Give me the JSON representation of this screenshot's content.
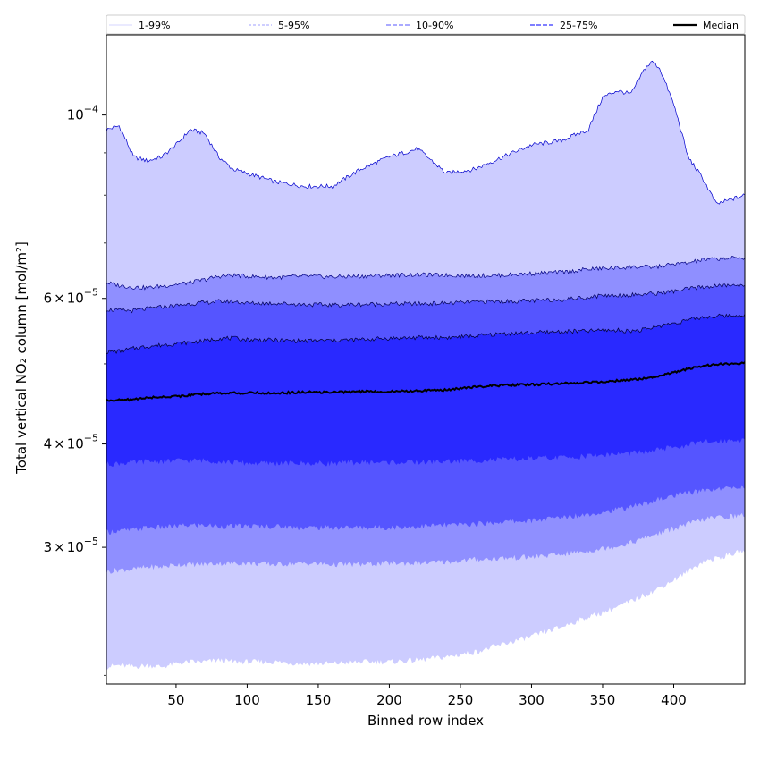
{
  "chart_data": {
    "type": "area",
    "title": "",
    "xlabel": "Binned row index",
    "ylabel": "Total vertical NO₂ column [mol/m²]",
    "xscale": "linear",
    "yscale": "log",
    "xlim": [
      1,
      450
    ],
    "ylim": [
      2.05e-05,
      0.000125
    ],
    "grid": false,
    "legend_position": "top",
    "x_ticks": [
      50,
      100,
      150,
      200,
      250,
      300,
      350,
      400
    ],
    "x_tick_labels": [
      "50",
      "100",
      "150",
      "200",
      "250",
      "300",
      "350",
      "400"
    ],
    "y_ticks": [
      3e-05,
      4e-05,
      6e-05,
      0.0001
    ],
    "y_tick_labels": [
      {
        "mantissa": "3",
        "times": "×",
        "base": "10",
        "exp": "−5"
      },
      {
        "mantissa": "4",
        "times": "×",
        "base": "10",
        "exp": "−5"
      },
      {
        "mantissa": "6",
        "times": "×",
        "base": "10",
        "exp": "−5"
      },
      {
        "mantissa": "",
        "times": "",
        "base": "10",
        "exp": "−4"
      }
    ],
    "y_minor_ticks": [
      2.1e-05,
      5e-05,
      7e-05,
      8e-05,
      9e-05
    ],
    "x": [
      1,
      10,
      20,
      30,
      40,
      50,
      60,
      70,
      80,
      90,
      100,
      120,
      140,
      160,
      180,
      200,
      220,
      240,
      260,
      280,
      300,
      320,
      340,
      350,
      360,
      370,
      380,
      385,
      390,
      400,
      410,
      420,
      430,
      450
    ],
    "series": [
      {
        "name": "1-99%",
        "color": "#ccccff",
        "line_color": "#0000cc",
        "lower": [
          2.15e-05,
          2.16e-05,
          2.15e-05,
          2.16e-05,
          2.15e-05,
          2.17e-05,
          2.18e-05,
          2.18e-05,
          2.19e-05,
          2.18e-05,
          2.18e-05,
          2.18e-05,
          2.17e-05,
          2.17e-05,
          2.18e-05,
          2.18e-05,
          2.19e-05,
          2.21e-05,
          2.24e-05,
          2.29e-05,
          2.34e-05,
          2.4e-05,
          2.47e-05,
          2.5e-05,
          2.54e-05,
          2.58e-05,
          2.63e-05,
          2.65e-05,
          2.68e-05,
          2.74e-05,
          2.8e-05,
          2.88e-05,
          2.91e-05,
          2.97e-05
        ],
        "upper": [
          9.6e-05,
          9.7e-05,
          8.9e-05,
          8.8e-05,
          8.9e-05,
          9.2e-05,
          9.6e-05,
          9.5e-05,
          8.9e-05,
          8.6e-05,
          8.5e-05,
          8.3e-05,
          8.2e-05,
          8.2e-05,
          8.6e-05,
          8.9e-05,
          9.1e-05,
          8.5e-05,
          8.6e-05,
          8.9e-05,
          9.2e-05,
          9.3e-05,
          9.6e-05,
          0.000105,
          0.000107,
          0.000106,
          0.000114,
          0.000116,
          0.000114,
          0.000103,
          8.9e-05,
          8.4e-05,
          7.8e-05,
          8e-05
        ]
      },
      {
        "name": "5-95%",
        "color": "#8f8fff",
        "line_color": "#000080",
        "lower": [
          2.8e-05,
          2.82e-05,
          2.82e-05,
          2.84e-05,
          2.84e-05,
          2.86e-05,
          2.86e-05,
          2.86e-05,
          2.87e-05,
          2.87e-05,
          2.87e-05,
          2.86e-05,
          2.87e-05,
          2.86e-05,
          2.86e-05,
          2.87e-05,
          2.87e-05,
          2.88e-05,
          2.9e-05,
          2.91e-05,
          2.92e-05,
          2.94e-05,
          2.97e-05,
          2.99e-05,
          3.01e-05,
          3.04e-05,
          3.08e-05,
          3.1e-05,
          3.12e-05,
          3.16e-05,
          3.2e-05,
          3.24e-05,
          3.26e-05,
          3.28e-05
        ],
        "upper": [
          6.27e-05,
          6.22e-05,
          6.19e-05,
          6.18e-05,
          6.21e-05,
          6.24e-05,
          6.27e-05,
          6.32e-05,
          6.38e-05,
          6.4e-05,
          6.38e-05,
          6.36e-05,
          6.38e-05,
          6.37e-05,
          6.38e-05,
          6.4e-05,
          6.41e-05,
          6.4e-05,
          6.39e-05,
          6.4e-05,
          6.43e-05,
          6.45e-05,
          6.51e-05,
          6.52e-05,
          6.53e-05,
          6.55e-05,
          6.55e-05,
          6.54e-05,
          6.56e-05,
          6.6e-05,
          6.62e-05,
          6.68e-05,
          6.7e-05,
          6.72e-05
        ]
      },
      {
        "name": "10-90%",
        "color": "#5555ff",
        "line_color": "#000055",
        "lower": [
          3.13e-05,
          3.14e-05,
          3.15e-05,
          3.17e-05,
          3.17e-05,
          3.18e-05,
          3.19e-05,
          3.19e-05,
          3.18e-05,
          3.18e-05,
          3.18e-05,
          3.18e-05,
          3.17e-05,
          3.17e-05,
          3.17e-05,
          3.17e-05,
          3.18e-05,
          3.19e-05,
          3.2e-05,
          3.22e-05,
          3.23e-05,
          3.26e-05,
          3.29e-05,
          3.31e-05,
          3.33e-05,
          3.36e-05,
          3.39e-05,
          3.41e-05,
          3.43e-05,
          3.46e-05,
          3.49e-05,
          3.51e-05,
          3.53e-05,
          3.55e-05
        ],
        "upper": [
          5.82e-05,
          5.8e-05,
          5.8e-05,
          5.83e-05,
          5.86e-05,
          5.88e-05,
          5.91e-05,
          5.93e-05,
          5.95e-05,
          5.95e-05,
          5.92e-05,
          5.92e-05,
          5.9e-05,
          5.89e-05,
          5.9e-05,
          5.91e-05,
          5.91e-05,
          5.92e-05,
          5.94e-05,
          5.95e-05,
          5.96e-05,
          5.98e-05,
          6.02e-05,
          6.05e-05,
          6.05e-05,
          6.06e-05,
          6.07e-05,
          6.08e-05,
          6.09e-05,
          6.12e-05,
          6.16e-05,
          6.19e-05,
          6.21e-05,
          6.23e-05
        ]
      },
      {
        "name": "25-75%",
        "color": "#2929ff",
        "line_color": "#000033",
        "lower": [
          3.78e-05,
          3.79e-05,
          3.8e-05,
          3.81e-05,
          3.81e-05,
          3.82e-05,
          3.82e-05,
          3.82e-05,
          3.81e-05,
          3.8e-05,
          3.79e-05,
          3.79e-05,
          3.79e-05,
          3.79e-05,
          3.8e-05,
          3.8e-05,
          3.8e-05,
          3.81e-05,
          3.82e-05,
          3.83e-05,
          3.84e-05,
          3.85e-05,
          3.87e-05,
          3.88e-05,
          3.89e-05,
          3.9e-05,
          3.91e-05,
          3.92e-05,
          3.94e-05,
          3.96e-05,
          3.99e-05,
          4.02e-05,
          4.03e-05,
          4.05e-05
        ],
        "upper": [
          5.17e-05,
          5.18e-05,
          5.22e-05,
          5.25e-05,
          5.27e-05,
          5.29e-05,
          5.31e-05,
          5.33e-05,
          5.37e-05,
          5.37e-05,
          5.35e-05,
          5.34e-05,
          5.33e-05,
          5.34e-05,
          5.35e-05,
          5.37e-05,
          5.38e-05,
          5.38e-05,
          5.4e-05,
          5.44e-05,
          5.45e-05,
          5.47e-05,
          5.48e-05,
          5.49e-05,
          5.49e-05,
          5.48e-05,
          5.5e-05,
          5.53e-05,
          5.56e-05,
          5.6e-05,
          5.65e-05,
          5.69e-05,
          5.71e-05,
          5.73e-05
        ]
      }
    ],
    "median": {
      "name": "Median",
      "color": "#000000",
      "values": [
        4.52e-05,
        4.52e-05,
        4.53e-05,
        4.55e-05,
        4.56e-05,
        4.57e-05,
        4.58e-05,
        4.6e-05,
        4.61e-05,
        4.61e-05,
        4.61e-05,
        4.61e-05,
        4.62e-05,
        4.62e-05,
        4.63e-05,
        4.63e-05,
        4.64e-05,
        4.65e-05,
        4.69e-05,
        4.71e-05,
        4.72e-05,
        4.73e-05,
        4.75e-05,
        4.76e-05,
        4.77e-05,
        4.78e-05,
        4.8e-05,
        4.82e-05,
        4.83e-05,
        4.88e-05,
        4.93e-05,
        4.97e-05,
        4.99e-05,
        5.01e-05
      ]
    },
    "legend": [
      {
        "label": "1-99%",
        "style": "thin",
        "color": "#c8c8ff"
      },
      {
        "label": "5-95%",
        "style": "thin-dashed",
        "color": "#8080ff"
      },
      {
        "label": "10-90%",
        "style": "dashed",
        "color": "#7777ff"
      },
      {
        "label": "25-75%",
        "style": "dashed",
        "color": "#3333ff"
      },
      {
        "label": "Median",
        "style": "solid",
        "color": "#000000"
      }
    ]
  }
}
